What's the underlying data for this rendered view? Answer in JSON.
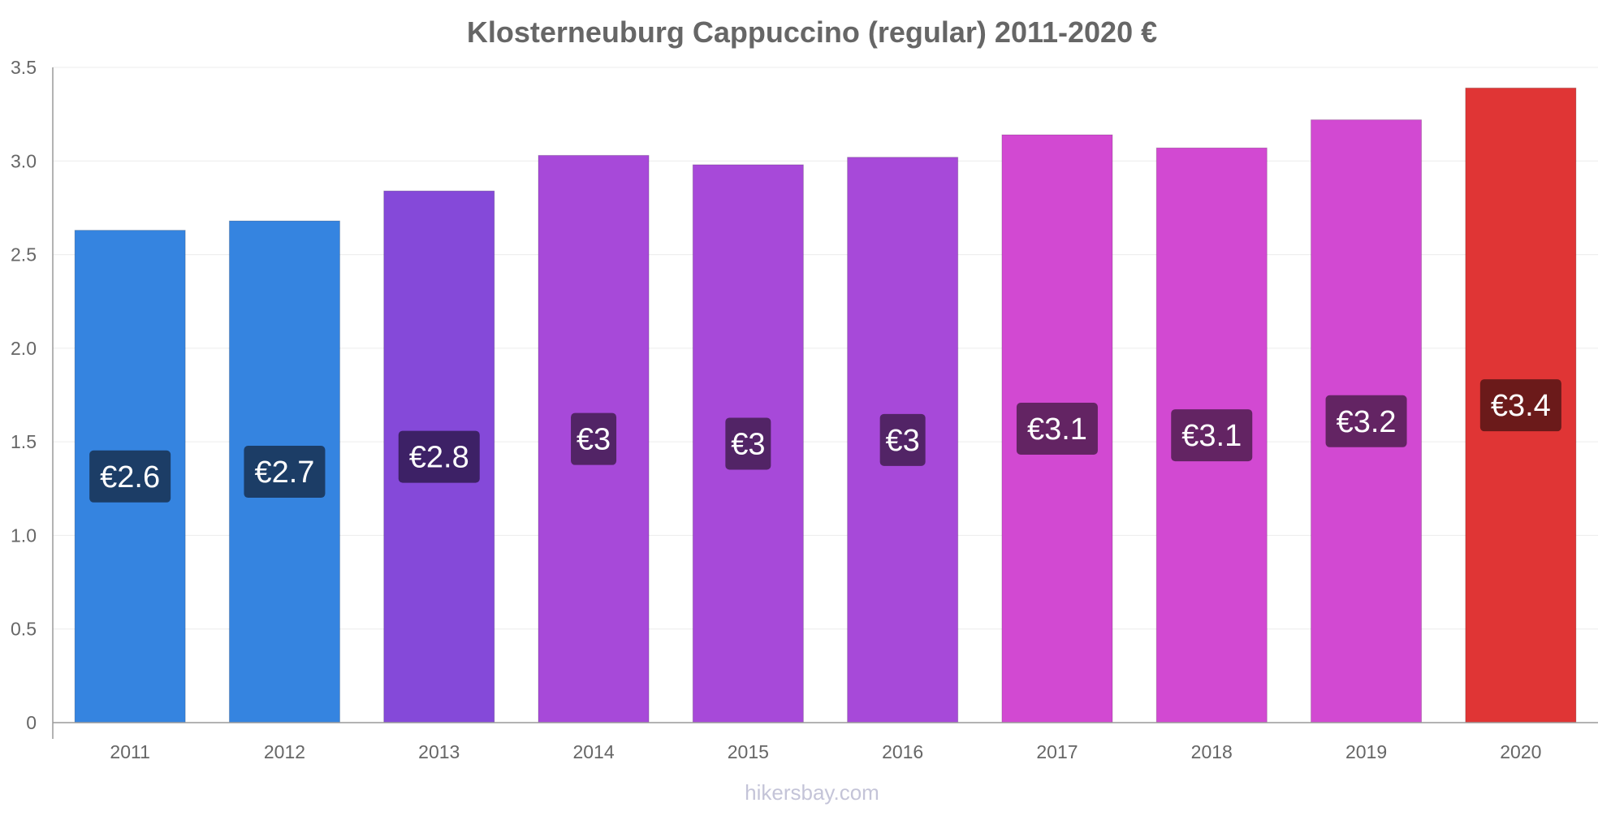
{
  "chart_data": {
    "type": "bar",
    "title": "Klosterneuburg Cappuccino (regular) 2011-2020 €",
    "xlabel": "",
    "ylabel": "",
    "categories": [
      "2011",
      "2012",
      "2013",
      "2014",
      "2015",
      "2016",
      "2017",
      "2018",
      "2019",
      "2020"
    ],
    "values": [
      2.63,
      2.68,
      2.84,
      3.03,
      2.98,
      3.02,
      3.14,
      3.07,
      3.22,
      3.39
    ],
    "data_labels": [
      "€2.6",
      "€2.7",
      "€2.8",
      "€3",
      "€3",
      "€3",
      "€3.1",
      "€3.1",
      "€3.2",
      "€3.4"
    ],
    "bar_colors": [
      "#3584e0",
      "#3584e0",
      "#8549d9",
      "#a749d9",
      "#a749d9",
      "#a749d9",
      "#d249d2",
      "#d249d2",
      "#d249d2",
      "#e03535"
    ],
    "label_bg_colors": [
      "#1c3d66",
      "#1c3d66",
      "#3d2166",
      "#522466",
      "#522466",
      "#522466",
      "#632463",
      "#632463",
      "#632463",
      "#6b1a1a"
    ],
    "ylim": [
      0,
      3.5
    ],
    "yticks": [
      "0",
      "0.5",
      "1.0",
      "1.5",
      "2.0",
      "2.5",
      "3.0",
      "3.5"
    ],
    "ytick_values": [
      0,
      0.5,
      1.0,
      1.5,
      2.0,
      2.5,
      3.0,
      3.5
    ],
    "grid": true,
    "legend": "none"
  },
  "watermark": "hikersbay.com"
}
